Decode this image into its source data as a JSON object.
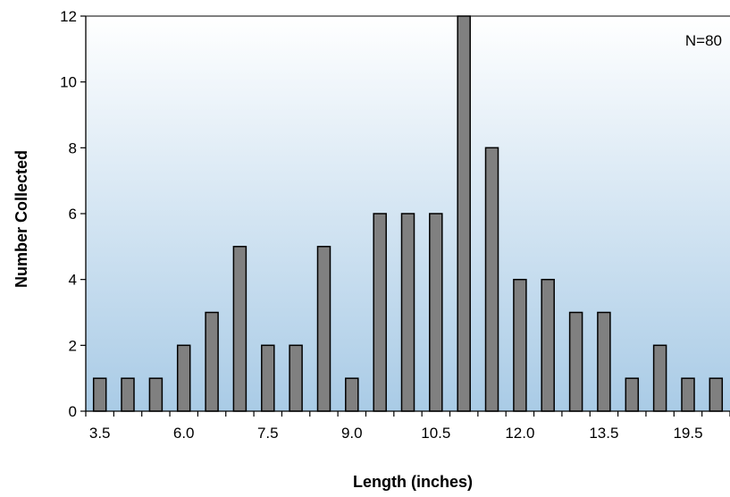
{
  "chart_data": {
    "type": "bar",
    "xlabel": "Length (inches)",
    "ylabel": "Number Collected",
    "annotation": "N=80",
    "ylim": [
      0,
      12
    ],
    "y_ticks": [
      0,
      2,
      4,
      6,
      8,
      10,
      12
    ],
    "x_tick_labels": [
      "3.5",
      "6.0",
      "7.5",
      "9.0",
      "10.5",
      "12.0",
      "13.5",
      "19.5"
    ],
    "values": [
      1,
      1,
      1,
      2,
      3,
      5,
      2,
      2,
      5,
      1,
      6,
      6,
      6,
      12,
      8,
      4,
      4,
      3,
      3,
      1,
      2,
      1,
      1
    ],
    "grid": false,
    "legend": "none",
    "colors": {
      "bar_fill": "#808080",
      "bar_stroke": "#000000",
      "plot_bg_top": "#ffffff",
      "plot_bg_bottom": "#a9cbe6"
    }
  }
}
